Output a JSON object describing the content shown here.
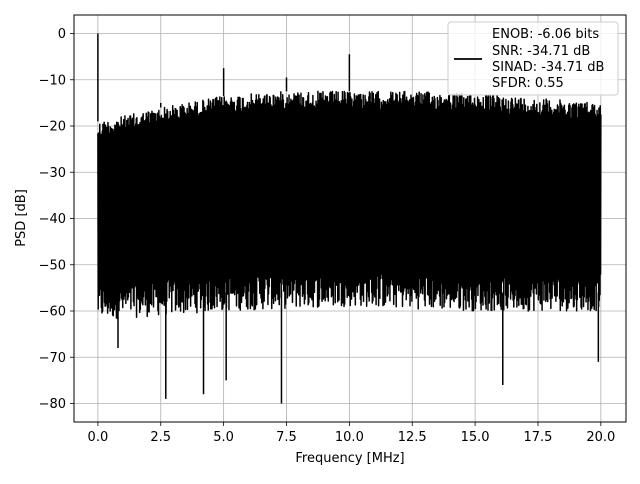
{
  "chart_data": {
    "type": "line",
    "title": "",
    "xlabel": "Frequency [MHz]",
    "ylabel": "PSD [dB]",
    "xlim": [
      -0.95,
      21.0
    ],
    "ylim": [
      -84,
      4
    ],
    "x_ticks": [
      0.0,
      2.5,
      5.0,
      7.5,
      10.0,
      12.5,
      15.0,
      17.5,
      20.0
    ],
    "x_tick_labels": [
      "0.0",
      "2.5",
      "5.0",
      "7.5",
      "10.0",
      "12.5",
      "15.0",
      "17.5",
      "20.0"
    ],
    "y_ticks": [
      0,
      -10,
      -20,
      -30,
      -40,
      -50,
      -60,
      -70,
      -80
    ],
    "y_tick_labels": [
      "0",
      "−10",
      "−20",
      "−30",
      "−40",
      "−50",
      "−60",
      "−70",
      "−80"
    ],
    "grid": true,
    "legend_position": "top-right",
    "line_color": "#000000",
    "series": [
      {
        "name": "ENOB: -6.06 bits\nSNR: -34.71 dB\nSINAD: -34.71 dB\nSFDR: 0.55",
        "color": "#000000",
        "x_range_mhz": [
          0,
          20
        ],
        "noise_upper_envelope_db": {
          "x": [
            0,
            0.5,
            2.5,
            5,
            7.5,
            10,
            12.5,
            15,
            17.5,
            20
          ],
          "y": [
            -19,
            -18.5,
            -16,
            -13.5,
            -12.5,
            -12.5,
            -12.5,
            -13,
            -14,
            -15
          ]
        },
        "noise_lower_envelope_db": {
          "x": [
            0,
            5,
            10,
            15,
            20
          ],
          "y": [
            -58,
            -56,
            -55,
            -56,
            -56
          ]
        },
        "peaks": [
          {
            "x": 0.0,
            "y": 0
          },
          {
            "x": 2.5,
            "y": -15
          },
          {
            "x": 5.0,
            "y": -7.5
          },
          {
            "x": 7.5,
            "y": -9.5
          },
          {
            "x": 10.0,
            "y": -4.5
          }
        ],
        "notable_dips": [
          {
            "x": 0.8,
            "y": -68
          },
          {
            "x": 2.7,
            "y": -79
          },
          {
            "x": 4.2,
            "y": -78
          },
          {
            "x": 5.1,
            "y": -75
          },
          {
            "x": 7.3,
            "y": -80
          },
          {
            "x": 16.1,
            "y": -76
          },
          {
            "x": 19.9,
            "y": -71
          }
        ]
      }
    ],
    "legend_lines": [
      "ENOB: -6.06 bits",
      "SNR: -34.71 dB",
      "SINAD: -34.71 dB",
      "SFDR: 0.55"
    ]
  }
}
